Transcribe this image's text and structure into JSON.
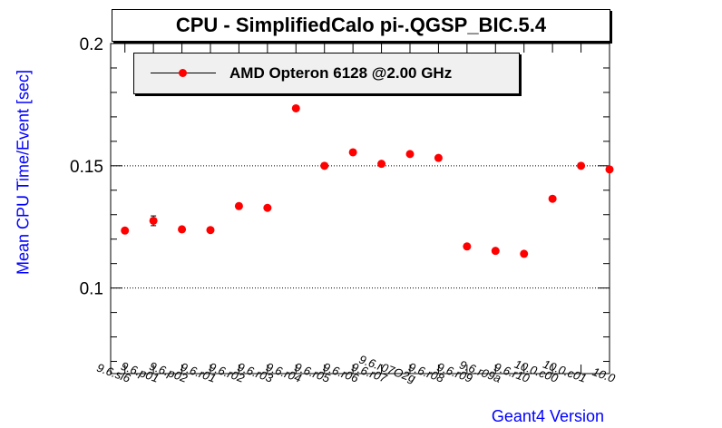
{
  "chart_data": {
    "type": "scatter",
    "title": "CPU - SimplifiedCalo pi-.QGSP_BIC.5.4",
    "xlabel": "Geant4 Version",
    "ylabel": "Mean CPU Time/Event [sec]",
    "ylim": [
      0.065,
      0.2
    ],
    "yticks": [
      "0.1",
      "0.15",
      "0.2"
    ],
    "grid": "horizontal at major ticks",
    "legend": {
      "placement": "top-left",
      "entries": [
        "AMD Opteron 6128 @2.00 GHz"
      ]
    },
    "categories": [
      "9.6.sl6",
      "9.6.p01",
      "9.6.p02",
      "9.6.r01",
      "9.6.r02",
      "9.6.r03",
      "9.6.r04",
      "9.6.r05",
      "9.6.r06",
      "9.6.r07",
      "9.6.r07O2g",
      "9.6.r08",
      "9.6.r09",
      "9.6.r09a",
      "9.6.r10",
      "10.0.c00",
      "10.0.c01",
      "10.0"
    ],
    "series": [
      {
        "name": "AMD Opteron 6128 @2.00 GHz",
        "color": "#ff0000",
        "values": [
          0.1235,
          0.1275,
          0.124,
          0.1237,
          0.1335,
          0.1328,
          0.1735,
          0.15,
          0.1555,
          0.1508,
          0.1548,
          0.1532,
          0.117,
          0.1152,
          0.114,
          0.1365,
          0.15,
          0.1485
        ],
        "errors": [
          0,
          0.002,
          0,
          0,
          0,
          0,
          0,
          0,
          0,
          0,
          0,
          0,
          0,
          0,
          0,
          0,
          0,
          0
        ]
      }
    ]
  },
  "colors": {
    "marker": "#ff0000",
    "axis_title": "#0000ff",
    "legend_bg": "#f0f0f0"
  }
}
